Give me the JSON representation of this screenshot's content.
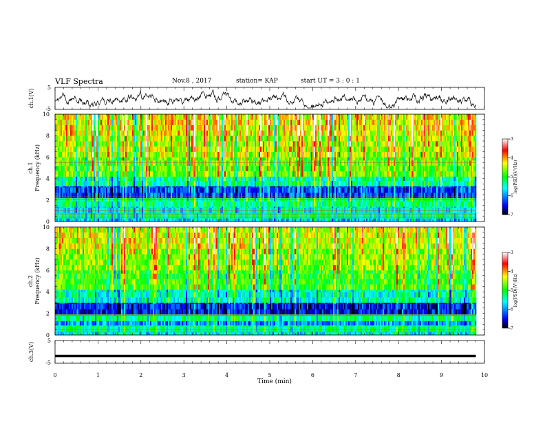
{
  "header": {
    "title": "VLF Spectra",
    "date": "Nov.8  , 2017",
    "station": "station= KAP",
    "start_ut": "start  UT  =   3  : 0  : 1"
  },
  "chart_data": [
    {
      "type": "line",
      "panel": "ch1-waveform",
      "ylabel": "ch.1(V)",
      "ytick_labels": [
        "5",
        "-5"
      ],
      "ylim": [
        -5,
        5
      ],
      "xlim": [
        0,
        10
      ],
      "series": [
        {
          "x": [
            0,
            9.8
          ],
          "y": [
            0,
            0
          ],
          "note_text": ""
        }
      ]
    },
    {
      "type": "heatmap",
      "panel": "ch1-spectrogram",
      "ylabel_lines": [
        "ch.1",
        "Frequency  (kHz)"
      ],
      "ytick_labels": [
        "0",
        "2",
        "4",
        "6",
        "8",
        "10"
      ],
      "ylim": [
        0,
        10
      ],
      "xlim": [
        0,
        10
      ],
      "colorbar": {
        "label": "log(PSD)(V²/Hz)",
        "tick_labels": [
          "-3",
          "-4",
          "-5",
          "-6",
          "-7"
        ],
        "range": [
          -7,
          -3
        ]
      },
      "bands": [
        {
          "from": 0.0,
          "to": 0.3,
          "value": -5.8
        },
        {
          "from": 0.3,
          "to": 0.8,
          "value": -5.4
        },
        {
          "from": 0.8,
          "to": 1.4,
          "value": -5.6
        },
        {
          "from": 1.4,
          "to": 2.2,
          "value": -5.3
        },
        {
          "from": 2.2,
          "to": 3.3,
          "value": -6.3
        },
        {
          "from": 3.3,
          "to": 4.2,
          "value": -5.4
        },
        {
          "from": 4.2,
          "to": 6.0,
          "value": -4.8
        },
        {
          "from": 6.0,
          "to": 8.0,
          "value": -4.5
        },
        {
          "from": 8.0,
          "to": 10.0,
          "value": -4.3
        }
      ],
      "lines_khz": [
        0.4,
        0.7,
        1.0,
        2.1,
        2.3,
        5.5
      ]
    },
    {
      "type": "heatmap",
      "panel": "ch2-spectrogram",
      "ylabel_lines": [
        "ch.2",
        "Frequency  (kHz)"
      ],
      "ytick_labels": [
        "0",
        "2",
        "4",
        "6",
        "8",
        "10"
      ],
      "ylim": [
        0,
        10
      ],
      "xlim": [
        0,
        10
      ],
      "colorbar": {
        "label": "log(PSD)(V²/Hz)",
        "tick_labels": [
          "-3",
          "-4",
          "-5",
          "-6",
          "-7"
        ],
        "range": [
          -7,
          -3
        ]
      },
      "bands": [
        {
          "from": 0.0,
          "to": 0.3,
          "value": -5.6
        },
        {
          "from": 0.3,
          "to": 0.9,
          "value": -5.3
        },
        {
          "from": 0.9,
          "to": 1.3,
          "value": -6.0
        },
        {
          "from": 1.3,
          "to": 1.9,
          "value": -5.3
        },
        {
          "from": 1.9,
          "to": 3.0,
          "value": -6.5
        },
        {
          "from": 3.0,
          "to": 4.2,
          "value": -5.5
        },
        {
          "from": 4.2,
          "to": 6.0,
          "value": -4.9
        },
        {
          "from": 6.0,
          "to": 8.0,
          "value": -4.6
        },
        {
          "from": 8.0,
          "to": 10.0,
          "value": -4.4
        }
      ],
      "lines_khz": [
        0.3,
        0.5,
        1.8,
        1.9
      ]
    },
    {
      "type": "line",
      "panel": "ch3-waveform",
      "ylabel": "ch.3(V)",
      "ytick_labels": [
        "5",
        "-5"
      ],
      "ylim": [
        -5,
        5
      ],
      "xlim": [
        0,
        10
      ],
      "series": [
        {
          "x": [
            0,
            9.8
          ],
          "y": [
            -1.8,
            -1.8
          ]
        }
      ]
    }
  ],
  "xaxis": {
    "label": "Time  (min)",
    "tick_labels": [
      "0",
      "1",
      "2",
      "3",
      "4",
      "5",
      "6",
      "7",
      "8",
      "9",
      "10"
    ],
    "xlim": [
      0,
      10
    ]
  }
}
